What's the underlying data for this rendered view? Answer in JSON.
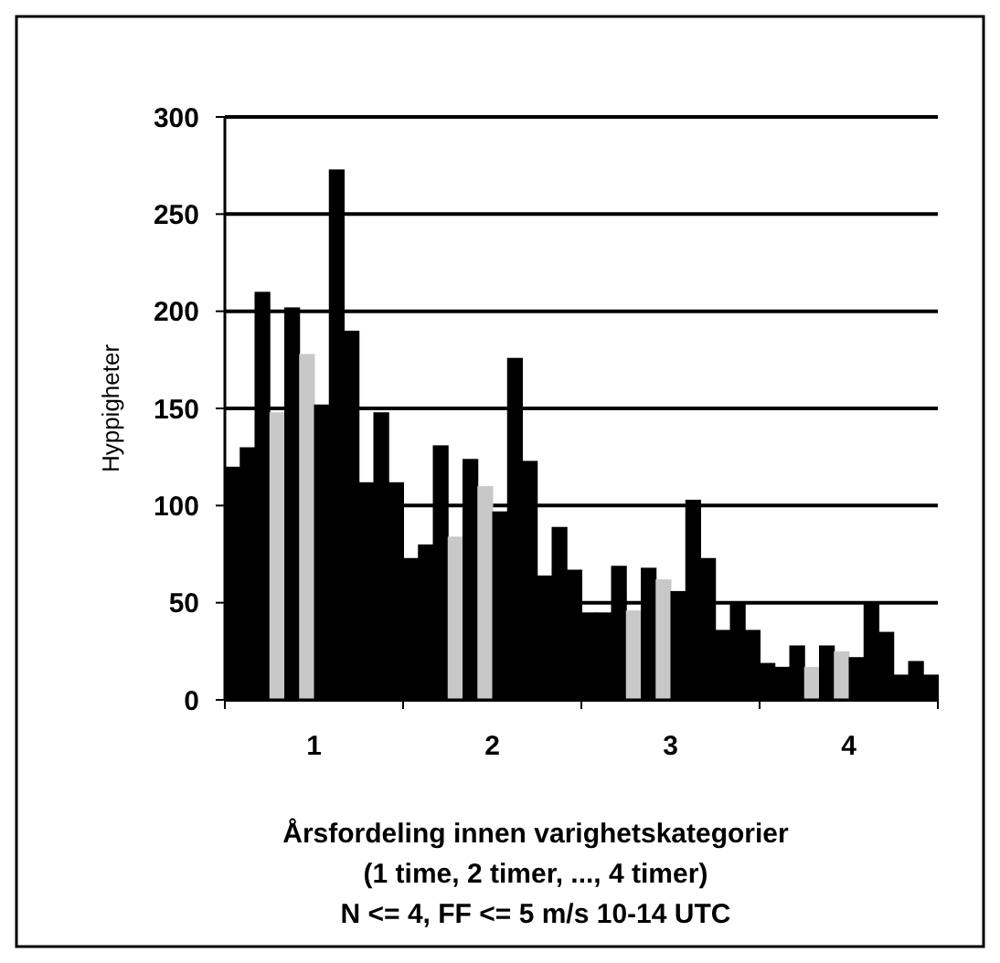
{
  "chart_data": {
    "type": "bar",
    "xlabel": "Årsfordeling innen varighetskategorier\n(1 time, 2 timer, ..., 4 timer)\nN <= 4, FF <= 5 m/s  10-14 UTC",
    "ylabel": "Hyppigheter",
    "categories": [
      "1",
      "2",
      "3",
      "4"
    ],
    "series": [
      {
        "color": "#000000",
        "values": [
          120,
          73,
          45,
          19
        ]
      },
      {
        "color": "#000000",
        "values": [
          130,
          80,
          45,
          17
        ]
      },
      {
        "color": "#000000",
        "values": [
          210,
          131,
          69,
          28
        ]
      },
      {
        "color": "#c8c8c8",
        "values": [
          148,
          84,
          46,
          17
        ]
      },
      {
        "color": "#000000",
        "values": [
          202,
          124,
          68,
          28
        ]
      },
      {
        "color": "#c8c8c8",
        "values": [
          178,
          110,
          62,
          25
        ]
      },
      {
        "color": "#000000",
        "values": [
          152,
          97,
          56,
          22
        ]
      },
      {
        "color": "#000000",
        "values": [
          273,
          176,
          103,
          50
        ]
      },
      {
        "color": "#000000",
        "values": [
          190,
          123,
          73,
          35
        ]
      },
      {
        "color": "#000000",
        "values": [
          112,
          64,
          36,
          13
        ]
      },
      {
        "color": "#000000",
        "values": [
          148,
          89,
          50,
          20
        ]
      },
      {
        "color": "#000000",
        "values": [
          112,
          67,
          36,
          13
        ]
      }
    ],
    "ylim": [
      0,
      300
    ],
    "yticks": [
      0,
      50,
      100,
      150,
      200,
      250,
      300
    ],
    "grid": "y"
  }
}
